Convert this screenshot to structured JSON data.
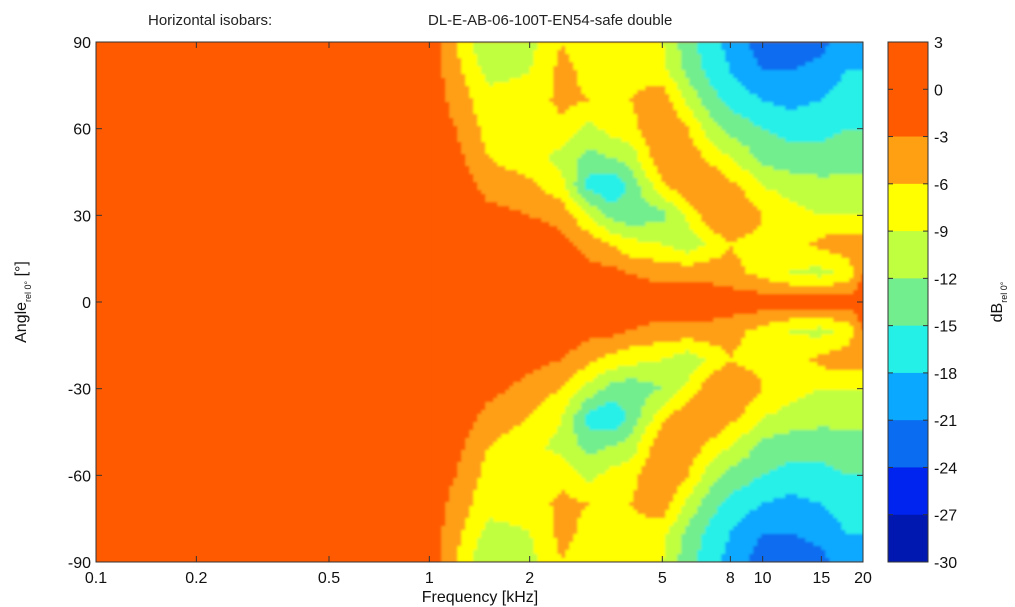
{
  "chart_data": {
    "type": "heatmap",
    "title_left": "Horizontal isobars:",
    "title_right": "DL-E-AB-06-100T-EN54-safe  double",
    "xlabel": "Frequency [kHz]",
    "ylabel_main": "Angle",
    "ylabel_sub": "rel 0°",
    "ylabel_unit": " [°]",
    "colorbar_label_main": "dB",
    "colorbar_label_sub": "rel 0°",
    "x_scale": "log",
    "xlim": [
      0.1,
      20
    ],
    "ylim": [
      -90,
      90
    ],
    "x_ticks": [
      {
        "value": 0.1,
        "label": "0.1"
      },
      {
        "value": 0.2,
        "label": "0.2"
      },
      {
        "value": 0.5,
        "label": "0.5"
      },
      {
        "value": 1,
        "label": "1"
      },
      {
        "value": 2,
        "label": "2"
      },
      {
        "value": 5,
        "label": "5"
      },
      {
        "value": 8,
        "label": "8"
      },
      {
        "value": 10,
        "label": "10"
      },
      {
        "value": 15,
        "label": "15"
      },
      {
        "value": 20,
        "label": "20"
      }
    ],
    "y_ticks": [
      {
        "value": 90,
        "label": "90"
      },
      {
        "value": 60,
        "label": "60"
      },
      {
        "value": 30,
        "label": "30"
      },
      {
        "value": 0,
        "label": "0"
      },
      {
        "value": -30,
        "label": "-30"
      },
      {
        "value": -60,
        "label": "-60"
      },
      {
        "value": -90,
        "label": "-90"
      }
    ],
    "colorbar": {
      "ticks": [
        {
          "value": 3,
          "label": "3"
        },
        {
          "value": 0,
          "label": "0"
        },
        {
          "value": -3,
          "label": "-3"
        },
        {
          "value": -6,
          "label": "-6"
        },
        {
          "value": -9,
          "label": "-9"
        },
        {
          "value": -12,
          "label": "-12"
        },
        {
          "value": -15,
          "label": "-15"
        },
        {
          "value": -18,
          "label": "-18"
        },
        {
          "value": -21,
          "label": "-21"
        },
        {
          "value": -24,
          "label": "-24"
        },
        {
          "value": -27,
          "label": "-27"
        },
        {
          "value": -30,
          "label": "-30"
        }
      ],
      "bands": [
        {
          "from": 0,
          "to": 3,
          "color": "#ff5a00"
        },
        {
          "from": -3,
          "to": 0,
          "color": "#ff5a00"
        },
        {
          "from": -6,
          "to": -3,
          "color": "#ff9f12"
        },
        {
          "from": -9,
          "to": -6,
          "color": "#ffff00"
        },
        {
          "from": -12,
          "to": -9,
          "color": "#bfff40"
        },
        {
          "from": -15,
          "to": -12,
          "color": "#72ee8e"
        },
        {
          "from": -18,
          "to": -15,
          "color": "#25f0e8"
        },
        {
          "from": -21,
          "to": -18,
          "color": "#0aa8ff"
        },
        {
          "from": -24,
          "to": -21,
          "color": "#0a6cf0"
        },
        {
          "from": -27,
          "to": -24,
          "color": "#0024f0"
        },
        {
          "from": -30,
          "to": -27,
          "color": "#0018b0"
        }
      ]
    },
    "frequencies_khz": [
      1.0,
      1.2,
      1.5,
      2.0,
      2.5,
      3.0,
      3.5,
      4.0,
      5.0,
      6.0,
      7.0,
      8.0,
      9.0,
      10.0,
      12.0,
      15.0,
      18.0,
      20.0
    ],
    "angle_rows": [
      {
        "angle": 90,
        "levels_db": [
          -1,
          -6,
          -12,
          -10,
          -6,
          -8,
          -7,
          -7,
          -9,
          -14,
          -17,
          -19,
          -21,
          -22,
          -23,
          -22,
          -19,
          -20
        ]
      },
      {
        "angle": 80,
        "levels_db": [
          -1,
          -5,
          -10,
          -9,
          -5,
          -7,
          -7,
          -7,
          -8,
          -13,
          -16,
          -18,
          -20,
          -21,
          -21,
          -20,
          -18,
          -18
        ]
      },
      {
        "angle": 70,
        "levels_db": [
          -1,
          -4,
          -8,
          -8,
          -5,
          -6,
          -7,
          -6,
          -4,
          -10,
          -14,
          -16,
          -17,
          -18,
          -19,
          -18,
          -16,
          -16
        ]
      },
      {
        "angle": 60,
        "levels_db": [
          -1,
          -3,
          -7,
          -7,
          -7,
          -10,
          -8,
          -7,
          -3,
          -6,
          -11,
          -13,
          -14,
          -15,
          -16,
          -16,
          -15,
          -15
        ]
      },
      {
        "angle": 50,
        "levels_db": [
          -1,
          -2,
          -6,
          -8,
          -10,
          -13,
          -12,
          -11,
          -3,
          -4,
          -7,
          -9,
          -11,
          -13,
          -14,
          -14,
          -13,
          -13
        ]
      },
      {
        "angle": 40,
        "levels_db": [
          -1,
          -1,
          -4,
          -5,
          -8,
          -16,
          -18,
          -14,
          -7,
          -3,
          -3,
          -5,
          -7,
          -9,
          -10,
          -11,
          -11,
          -11
        ]
      },
      {
        "angle": 30,
        "levels_db": [
          -1,
          -1,
          -2,
          -3,
          -4,
          -9,
          -13,
          -14,
          -13,
          -8,
          -4,
          -3,
          -4,
          -6,
          -8,
          -9,
          -9,
          -9
        ]
      },
      {
        "angle": 20,
        "levels_db": [
          -1,
          -1,
          -1,
          -1,
          -2,
          -4,
          -6,
          -8,
          -9,
          -11,
          -8,
          -6,
          -7,
          -7,
          -8,
          -5,
          -4,
          -4
        ]
      },
      {
        "angle": 10,
        "levels_db": [
          -1,
          -1,
          -1,
          -1,
          -1,
          -2,
          -2,
          -3,
          -4,
          -4,
          -4,
          -5,
          -6,
          -7,
          -9,
          -10,
          -8,
          -3
        ]
      },
      {
        "angle": 0,
        "levels_db": [
          -1,
          -1,
          -1,
          -1,
          -1,
          -1,
          -1,
          -1,
          -1,
          -1,
          -1,
          -1,
          -1,
          -1,
          -1,
          -1,
          -1,
          -1
        ]
      },
      {
        "angle": -10,
        "levels_db": [
          -1,
          -1,
          -1,
          -1,
          -1,
          -2,
          -2,
          -3,
          -4,
          -4,
          -4,
          -5,
          -6,
          -7,
          -9,
          -10,
          -8,
          -3
        ]
      },
      {
        "angle": -20,
        "levels_db": [
          -1,
          -1,
          -1,
          -2,
          -3,
          -5,
          -7,
          -8,
          -9,
          -11,
          -8,
          -6,
          -7,
          -7,
          -8,
          -5,
          -4,
          -4
        ]
      },
      {
        "angle": -30,
        "levels_db": [
          -1,
          -1,
          -2,
          -4,
          -6,
          -10,
          -13,
          -14,
          -12,
          -8,
          -4,
          -3,
          -4,
          -6,
          -8,
          -9,
          -9,
          -9
        ]
      },
      {
        "angle": -40,
        "levels_db": [
          -1,
          -1,
          -4,
          -6,
          -9,
          -16,
          -18,
          -14,
          -7,
          -3,
          -3,
          -5,
          -7,
          -9,
          -10,
          -11,
          -11,
          -11
        ]
      },
      {
        "angle": -50,
        "levels_db": [
          -1,
          -2,
          -6,
          -8,
          -10,
          -13,
          -12,
          -11,
          -3,
          -4,
          -7,
          -9,
          -11,
          -13,
          -14,
          -14,
          -13,
          -13
        ]
      },
      {
        "angle": -60,
        "levels_db": [
          -1,
          -3,
          -7,
          -8,
          -7,
          -10,
          -8,
          -7,
          -3,
          -6,
          -11,
          -13,
          -14,
          -15,
          -16,
          -16,
          -15,
          -15
        ]
      },
      {
        "angle": -70,
        "levels_db": [
          -1,
          -4,
          -8,
          -8,
          -5,
          -6,
          -7,
          -6,
          -4,
          -10,
          -14,
          -16,
          -17,
          -18,
          -19,
          -18,
          -16,
          -16
        ]
      },
      {
        "angle": -80,
        "levels_db": [
          -1,
          -5,
          -10,
          -9,
          -5,
          -7,
          -7,
          -7,
          -8,
          -13,
          -16,
          -18,
          -20,
          -21,
          -21,
          -20,
          -18,
          -18
        ]
      },
      {
        "angle": -90,
        "levels_db": [
          -1,
          -6,
          -12,
          -10,
          -6,
          -8,
          -7,
          -7,
          -9,
          -14,
          -17,
          -19,
          -21,
          -22,
          -23,
          -22,
          -19,
          -20
        ]
      }
    ],
    "below_1khz_level_db": -1,
    "grid": false,
    "legend": "colorbar-right"
  }
}
